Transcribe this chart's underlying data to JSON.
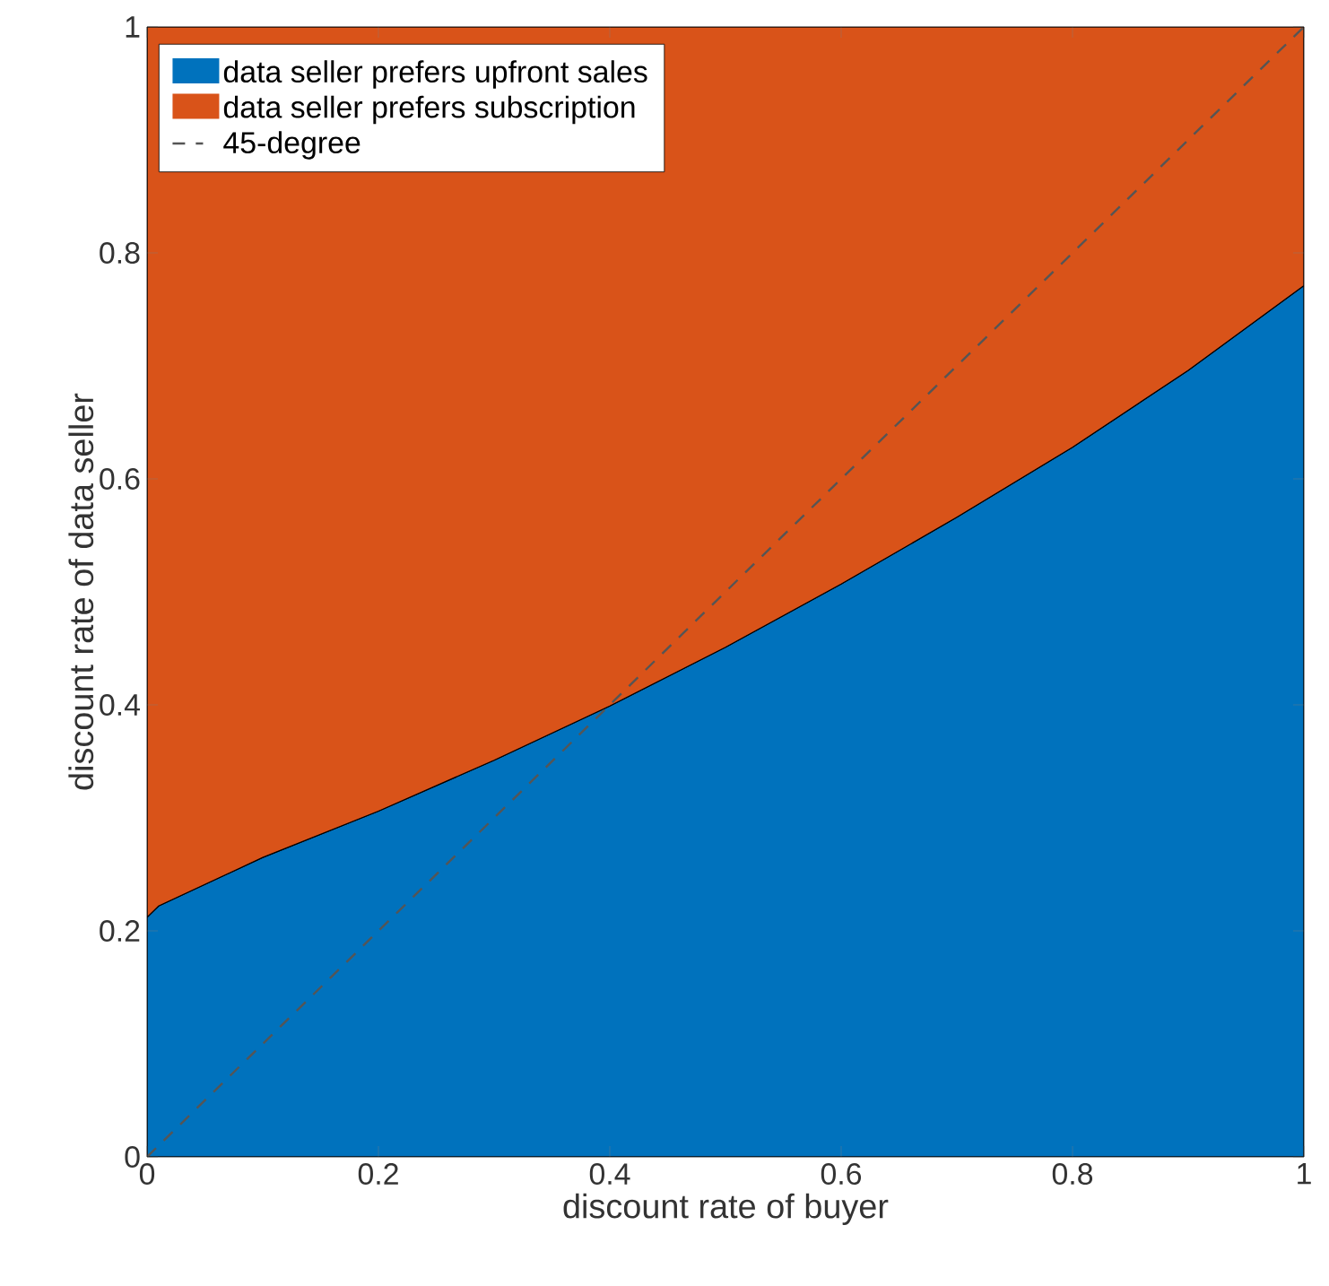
{
  "chart_data": {
    "type": "area",
    "stacked": true,
    "xlabel": "discount rate of buyer",
    "ylabel": "discount rate of data seller",
    "x": [
      0,
      0.01,
      0.1,
      0.2,
      0.3,
      0.4,
      0.5,
      0.6,
      0.7,
      0.8,
      0.9,
      1
    ],
    "series": [
      {
        "name": "data seller prefers upfront sales",
        "color": "#0072bd",
        "values": [
          0.212,
          0.222,
          0.265,
          0.306,
          0.351,
          0.399,
          0.451,
          0.507,
          0.566,
          0.628,
          0.696,
          0.771
        ]
      },
      {
        "name": "data seller prefers subscription",
        "color": "#d95319",
        "values": [
          0.788,
          0.778,
          0.735,
          0.694,
          0.649,
          0.601,
          0.549,
          0.493,
          0.434,
          0.372,
          0.304,
          0.229
        ]
      },
      {
        "name": "45-degree",
        "type": "line",
        "line_style": "dashed",
        "color": "#555555",
        "x": [
          0,
          1
        ],
        "values": [
          0,
          1
        ]
      }
    ],
    "xlim": [
      0,
      1
    ],
    "ylim": [
      0,
      1
    ],
    "xticks": [
      0,
      0.2,
      0.4,
      0.6,
      0.8,
      1
    ],
    "yticks": [
      0,
      0.2,
      0.4,
      0.6,
      0.8,
      1
    ],
    "legend": "top left"
  }
}
